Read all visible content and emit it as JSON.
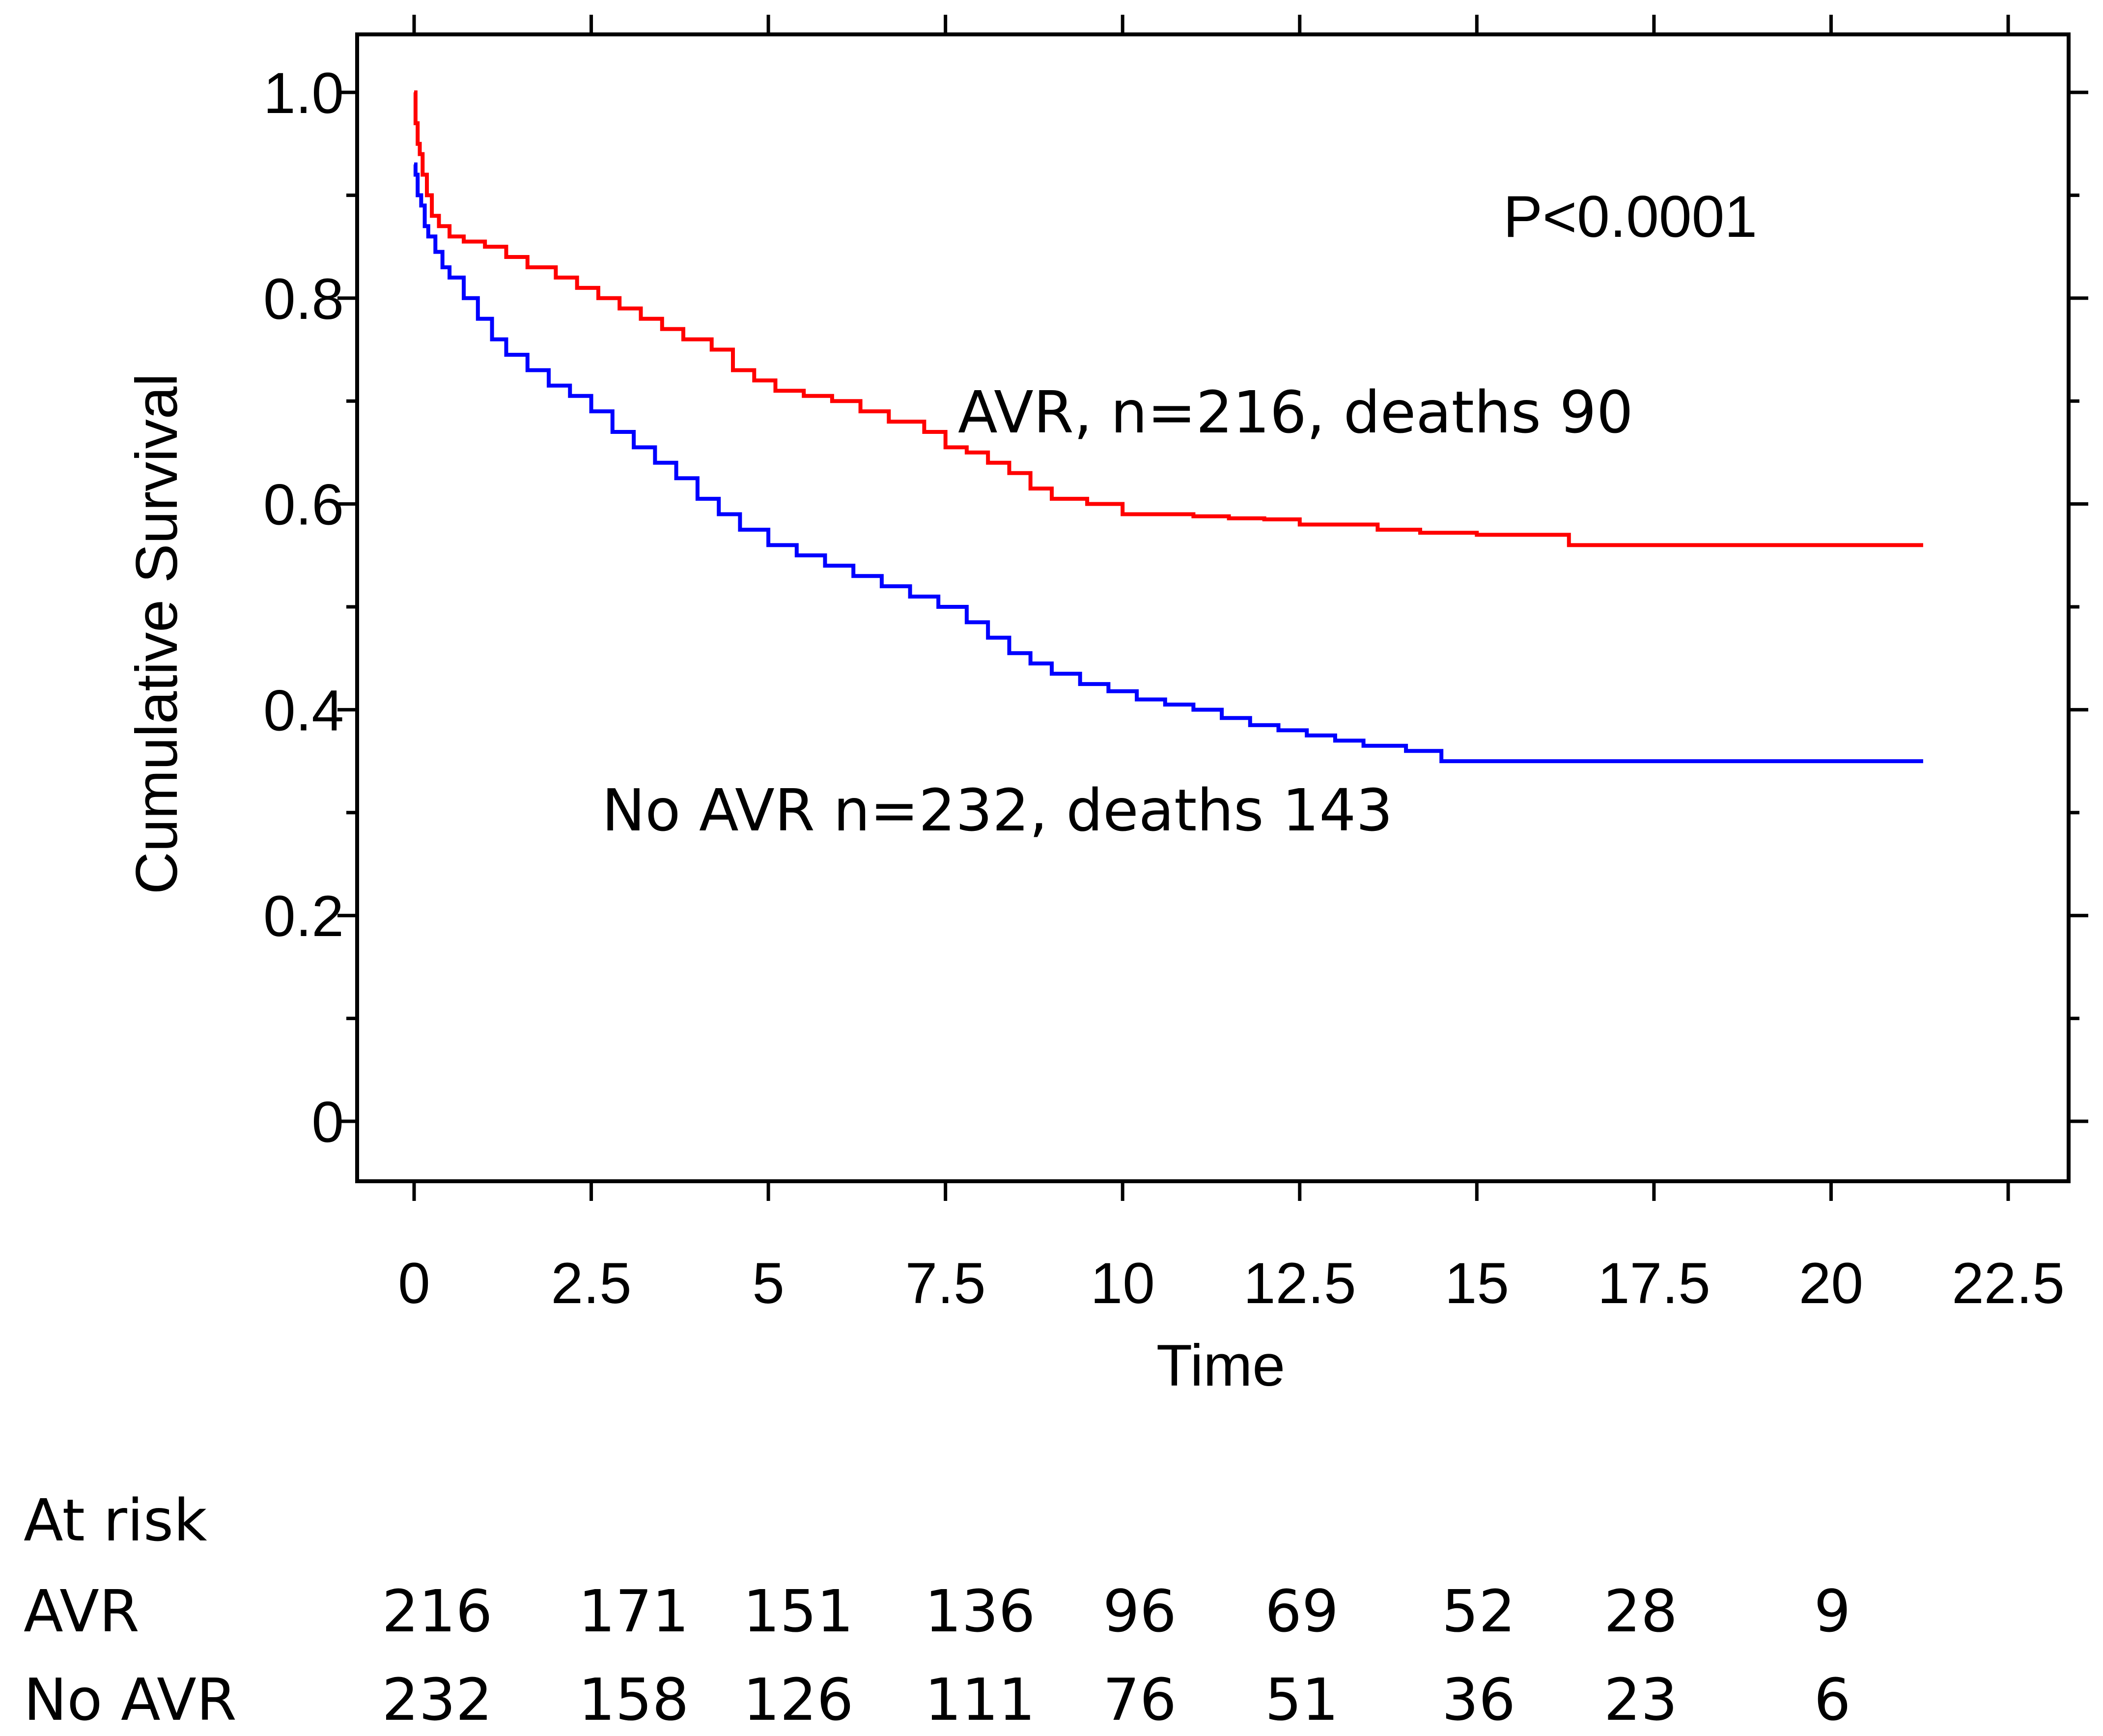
{
  "chart_data": {
    "type": "line",
    "subtype": "kaplan-meier",
    "title": "",
    "xlabel": "Time",
    "ylabel": "Cumulative Survival",
    "xlim": [
      -1.5,
      23
    ],
    "ylim": [
      -0.055,
      1.065
    ],
    "x_ticks": [
      0,
      2.5,
      5,
      7.5,
      10,
      12.5,
      15,
      17.5,
      20,
      22.5
    ],
    "x_tick_labels": [
      "0",
      "2.5",
      "5",
      "7.5",
      "10",
      "12.5",
      "15",
      "17.5",
      "20",
      "22.5"
    ],
    "y_ticks": [
      0,
      0.2,
      0.4,
      0.6,
      0.8,
      1.0
    ],
    "y_tick_labels": [
      "0",
      "0.2",
      "0.4",
      "0.6",
      "0.8",
      "1.0"
    ],
    "grid": false,
    "p_value": "P<0.0001",
    "series": [
      {
        "name": "AVR",
        "label": "AVR, n=216, deaths 90",
        "color": "#ff0000",
        "x": [
          0,
          0.02,
          0.05,
          0.08,
          0.12,
          0.18,
          0.25,
          0.35,
          0.5,
          0.7,
          1.0,
          1.3,
          1.6,
          2.0,
          2.3,
          2.6,
          2.9,
          3.2,
          3.5,
          3.8,
          4.2,
          4.5,
          4.8,
          5.1,
          5.5,
          5.9,
          6.3,
          6.7,
          7.0,
          7.2,
          7.5,
          7.8,
          8.1,
          8.4,
          8.7,
          9.0,
          9.5,
          10.0,
          10.5,
          11.0,
          11.5,
          12.0,
          12.5,
          13.0,
          13.6,
          14.2,
          15.0,
          16.0,
          16.3,
          17.0,
          18.0,
          19.0,
          20.0,
          21.3
        ],
        "y": [
          1.0,
          0.97,
          0.95,
          0.94,
          0.92,
          0.9,
          0.88,
          0.87,
          0.86,
          0.855,
          0.85,
          0.84,
          0.83,
          0.82,
          0.81,
          0.8,
          0.79,
          0.78,
          0.77,
          0.76,
          0.75,
          0.73,
          0.72,
          0.71,
          0.705,
          0.7,
          0.69,
          0.68,
          0.68,
          0.67,
          0.655,
          0.65,
          0.64,
          0.63,
          0.615,
          0.605,
          0.6,
          0.59,
          0.59,
          0.588,
          0.586,
          0.585,
          0.58,
          0.58,
          0.575,
          0.572,
          0.57,
          0.57,
          0.56,
          0.56,
          0.56,
          0.56,
          0.56,
          0.56
        ]
      },
      {
        "name": "No AVR",
        "label": "No AVR n=232, deaths 143",
        "color": "#0000ff",
        "x": [
          0,
          0.02,
          0.05,
          0.1,
          0.15,
          0.2,
          0.3,
          0.4,
          0.5,
          0.7,
          0.9,
          1.1,
          1.3,
          1.6,
          1.9,
          2.2,
          2.5,
          2.8,
          3.1,
          3.4,
          3.7,
          4.0,
          4.3,
          4.6,
          5.0,
          5.4,
          5.8,
          6.2,
          6.6,
          7.0,
          7.4,
          7.8,
          8.1,
          8.4,
          8.7,
          9.0,
          9.4,
          9.8,
          10.2,
          10.6,
          11.0,
          11.4,
          11.8,
          12.2,
          12.6,
          13.0,
          13.4,
          14.0,
          14.5,
          15.5,
          17.0,
          19.0,
          21.3
        ],
        "y": [
          0.93,
          0.92,
          0.9,
          0.89,
          0.87,
          0.86,
          0.845,
          0.83,
          0.82,
          0.8,
          0.78,
          0.76,
          0.745,
          0.73,
          0.715,
          0.705,
          0.69,
          0.67,
          0.655,
          0.64,
          0.625,
          0.605,
          0.59,
          0.575,
          0.56,
          0.55,
          0.54,
          0.53,
          0.52,
          0.51,
          0.5,
          0.485,
          0.47,
          0.455,
          0.445,
          0.435,
          0.425,
          0.418,
          0.41,
          0.405,
          0.4,
          0.392,
          0.385,
          0.38,
          0.375,
          0.37,
          0.365,
          0.36,
          0.35,
          0.35,
          0.35,
          0.35,
          0.35
        ]
      }
    ],
    "at_risk": {
      "title": "At risk",
      "times": [
        0,
        2.5,
        5,
        7.5,
        10,
        12.5,
        15,
        17.5,
        20
      ],
      "rows": [
        {
          "label": "AVR",
          "values": [
            "216",
            "171",
            "151",
            "136",
            "96",
            "69",
            "52",
            "28",
            "9"
          ]
        },
        {
          "label": "No AVR",
          "values": [
            "232",
            "158",
            "126",
            "111",
            "76",
            "51",
            "36",
            "23",
            "6"
          ]
        }
      ]
    }
  }
}
